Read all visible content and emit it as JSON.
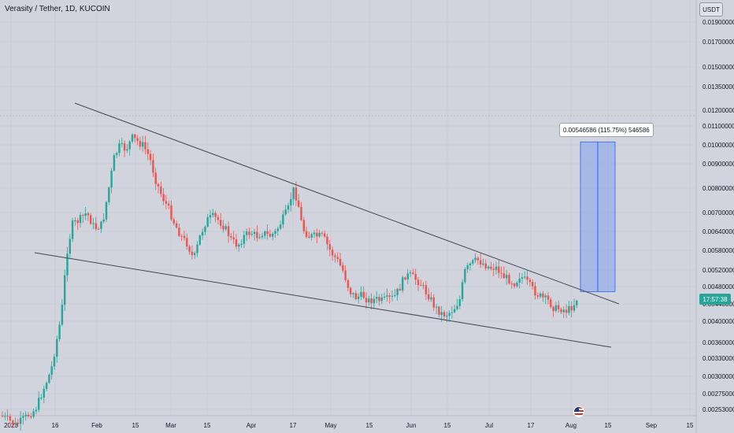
{
  "header": {
    "legend": "Verasity / Tether, 1D, KUCOIN",
    "currency": "USDT"
  },
  "price_tag": "17:57:38",
  "measure": {
    "label": "0.00546586 (115.75%) 546586"
  },
  "colors": {
    "up": "#26a69a",
    "down": "#ef5350",
    "measure_fill": "#2962ff",
    "trendline": "#434651",
    "background": "#d1d4dc"
  },
  "icons": {
    "flag": "us-flag-icon"
  },
  "chart_data": {
    "type": "candlestick",
    "x_ticks": [
      "2023",
      "16",
      "Feb",
      "15",
      "Mar",
      "15",
      "Apr",
      "17",
      "May",
      "15",
      "Jun",
      "15",
      "Jul",
      "17",
      "Aug",
      "15",
      "Sep",
      "15"
    ],
    "y_ticks": [
      "0.01900000",
      "0.01700000",
      "0.01500000",
      "0.01350000",
      "0.01200000",
      "0.01100000",
      "0.01000000",
      "0.00900000",
      "0.00800000",
      "0.00700000",
      "0.00640000",
      "0.00580000",
      "0.00520000",
      "0.00480000",
      "0.00440000",
      "0.00400000",
      "0.00360000",
      "0.00330000",
      "0.00300000",
      "0.00275000",
      "0.00253000"
    ],
    "y_scale": "log",
    "trend_upper": [
      [
        "2023-01-25",
        0.0125
      ],
      [
        "2023-08-20",
        0.0045
      ]
    ],
    "trend_lower": [
      [
        "2023-01-16",
        0.0057
      ],
      [
        "2023-08-20",
        0.0035
      ]
    ],
    "measure_range": [
      0.00468,
      0.01015
    ],
    "grid": true
  }
}
